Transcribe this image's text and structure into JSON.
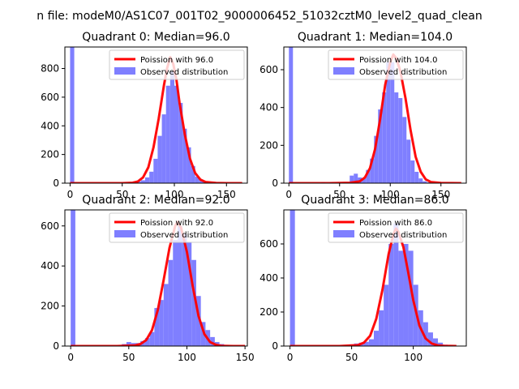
{
  "figure": {
    "suptitle": "n file: modeM0/AS1C07_001T02_9000006452_51032cztM0_level2_quad_clean"
  },
  "colors": {
    "hist": "#7f7fff",
    "fit": "#ff0000",
    "axes": "#000000"
  },
  "chart_data": [
    {
      "type": "histogram",
      "title": "Quadrant 0: Median=96.0",
      "median": 96.0,
      "xlim": [
        -5,
        170
      ],
      "ylim": [
        0,
        950
      ],
      "xticks": [
        0,
        50,
        100,
        150
      ],
      "yticks": [
        0,
        200,
        400,
        600,
        800
      ],
      "legend": [
        "Poission with 96.0",
        "Observed distribution"
      ],
      "legend_loc": "upper right",
      "bin_width": 4,
      "bins": [
        [
          0,
          950
        ],
        [
          52,
          2
        ],
        [
          56,
          5
        ],
        [
          60,
          10
        ],
        [
          64,
          12
        ],
        [
          68,
          20
        ],
        [
          72,
          40
        ],
        [
          76,
          80
        ],
        [
          80,
          170
        ],
        [
          84,
          330
        ],
        [
          88,
          480
        ],
        [
          92,
          680
        ],
        [
          96,
          780
        ],
        [
          100,
          680
        ],
        [
          104,
          560
        ],
        [
          108,
          380
        ],
        [
          112,
          250
        ],
        [
          116,
          120
        ],
        [
          120,
          45
        ],
        [
          124,
          20
        ],
        [
          128,
          8
        ],
        [
          132,
          4
        ]
      ],
      "fit_x": [
        0,
        10,
        20,
        30,
        40,
        50,
        60,
        65,
        70,
        75,
        80,
        85,
        90,
        93,
        96,
        99,
        102,
        105,
        110,
        115,
        120,
        125,
        130,
        140,
        150,
        165
      ],
      "fit_y": [
        0,
        0,
        0,
        0,
        0,
        0,
        3,
        12,
        40,
        110,
        250,
        450,
        680,
        800,
        880,
        830,
        720,
        560,
        340,
        170,
        70,
        25,
        8,
        1,
        0,
        0
      ]
    },
    {
      "type": "histogram",
      "title": "Quadrant 1: Median=104.0",
      "median": 104.0,
      "xlim": [
        -5,
        175
      ],
      "ylim": [
        0,
        720
      ],
      "xticks": [
        0,
        50,
        100,
        150
      ],
      "yticks": [
        0,
        200,
        400,
        600
      ],
      "legend": [
        "Poission with 104.0",
        "Observed distribution"
      ],
      "legend_loc": "upper right",
      "bin_width": 4,
      "bins": [
        [
          0,
          720
        ],
        [
          32,
          5
        ],
        [
          40,
          5
        ],
        [
          60,
          40
        ],
        [
          64,
          50
        ],
        [
          68,
          30
        ],
        [
          72,
          25
        ],
        [
          76,
          70
        ],
        [
          80,
          130
        ],
        [
          84,
          250
        ],
        [
          88,
          390
        ],
        [
          92,
          480
        ],
        [
          96,
          640
        ],
        [
          100,
          640
        ],
        [
          104,
          480
        ],
        [
          108,
          450
        ],
        [
          112,
          350
        ],
        [
          116,
          230
        ],
        [
          120,
          120
        ],
        [
          124,
          60
        ],
        [
          128,
          25
        ],
        [
          132,
          10
        ],
        [
          136,
          4
        ]
      ],
      "fit_x": [
        0,
        20,
        40,
        60,
        70,
        75,
        80,
        85,
        90,
        95,
        100,
        103,
        106,
        110,
        115,
        120,
        125,
        130,
        135,
        140,
        150,
        170
      ],
      "fit_y": [
        0,
        0,
        0,
        2,
        10,
        30,
        80,
        180,
        340,
        520,
        640,
        680,
        660,
        590,
        450,
        280,
        140,
        60,
        20,
        6,
        1,
        0
      ]
    },
    {
      "type": "histogram",
      "title": "Quadrant 2: Median=92.0",
      "median": 92.0,
      "xlim": [
        -5,
        152
      ],
      "ylim": [
        0,
        680
      ],
      "xticks": [
        0,
        50,
        100,
        150
      ],
      "yticks": [
        0,
        200,
        400,
        600
      ],
      "legend": [
        "Poission with 92.0",
        "Observed distribution"
      ],
      "legend_loc": "upper right",
      "bin_width": 4,
      "bins": [
        [
          0,
          680
        ],
        [
          44,
          10
        ],
        [
          48,
          20
        ],
        [
          52,
          15
        ],
        [
          56,
          15
        ],
        [
          60,
          25
        ],
        [
          64,
          40
        ],
        [
          68,
          70
        ],
        [
          72,
          190
        ],
        [
          76,
          230
        ],
        [
          80,
          310
        ],
        [
          84,
          430
        ],
        [
          88,
          530
        ],
        [
          92,
          600
        ],
        [
          96,
          560
        ],
        [
          100,
          520
        ],
        [
          104,
          430
        ],
        [
          108,
          250
        ],
        [
          112,
          120
        ],
        [
          116,
          80
        ],
        [
          120,
          45
        ],
        [
          124,
          20
        ],
        [
          128,
          10
        ],
        [
          132,
          5
        ]
      ],
      "fit_x": [
        0,
        20,
        40,
        55,
        60,
        65,
        70,
        75,
        80,
        85,
        90,
        92,
        95,
        100,
        105,
        110,
        115,
        120,
        125,
        130,
        140,
        150
      ],
      "fit_y": [
        0,
        0,
        0,
        3,
        10,
        30,
        80,
        180,
        330,
        490,
        600,
        620,
        590,
        470,
        300,
        150,
        60,
        20,
        6,
        1,
        0,
        0
      ]
    },
    {
      "type": "histogram",
      "title": "Quadrant 3: Median=86.0",
      "median": 86.0,
      "xlim": [
        -5,
        143
      ],
      "ylim": [
        0,
        800
      ],
      "xticks": [
        0,
        50,
        100
      ],
      "yticks": [
        0,
        200,
        400,
        600
      ],
      "legend": [
        "Poission with 86.0",
        "Observed distribution"
      ],
      "legend_loc": "upper right",
      "bin_width": 4,
      "bins": [
        [
          0,
          800
        ],
        [
          48,
          10
        ],
        [
          52,
          15
        ],
        [
          56,
          20
        ],
        [
          60,
          25
        ],
        [
          64,
          40
        ],
        [
          68,
          90
        ],
        [
          72,
          210
        ],
        [
          76,
          360
        ],
        [
          80,
          600
        ],
        [
          84,
          720
        ],
        [
          88,
          560
        ],
        [
          92,
          600
        ],
        [
          96,
          560
        ],
        [
          100,
          360
        ],
        [
          104,
          210
        ],
        [
          108,
          140
        ],
        [
          112,
          80
        ],
        [
          116,
          45
        ],
        [
          120,
          20
        ],
        [
          124,
          8
        ]
      ],
      "fit_x": [
        0,
        20,
        40,
        55,
        60,
        65,
        70,
        75,
        80,
        84,
        86,
        88,
        92,
        96,
        100,
        105,
        110,
        115,
        120,
        125,
        135
      ],
      "fit_y": [
        0,
        0,
        0,
        5,
        20,
        60,
        160,
        330,
        540,
        660,
        690,
        670,
        580,
        430,
        270,
        120,
        45,
        15,
        4,
        1,
        0
      ]
    }
  ]
}
